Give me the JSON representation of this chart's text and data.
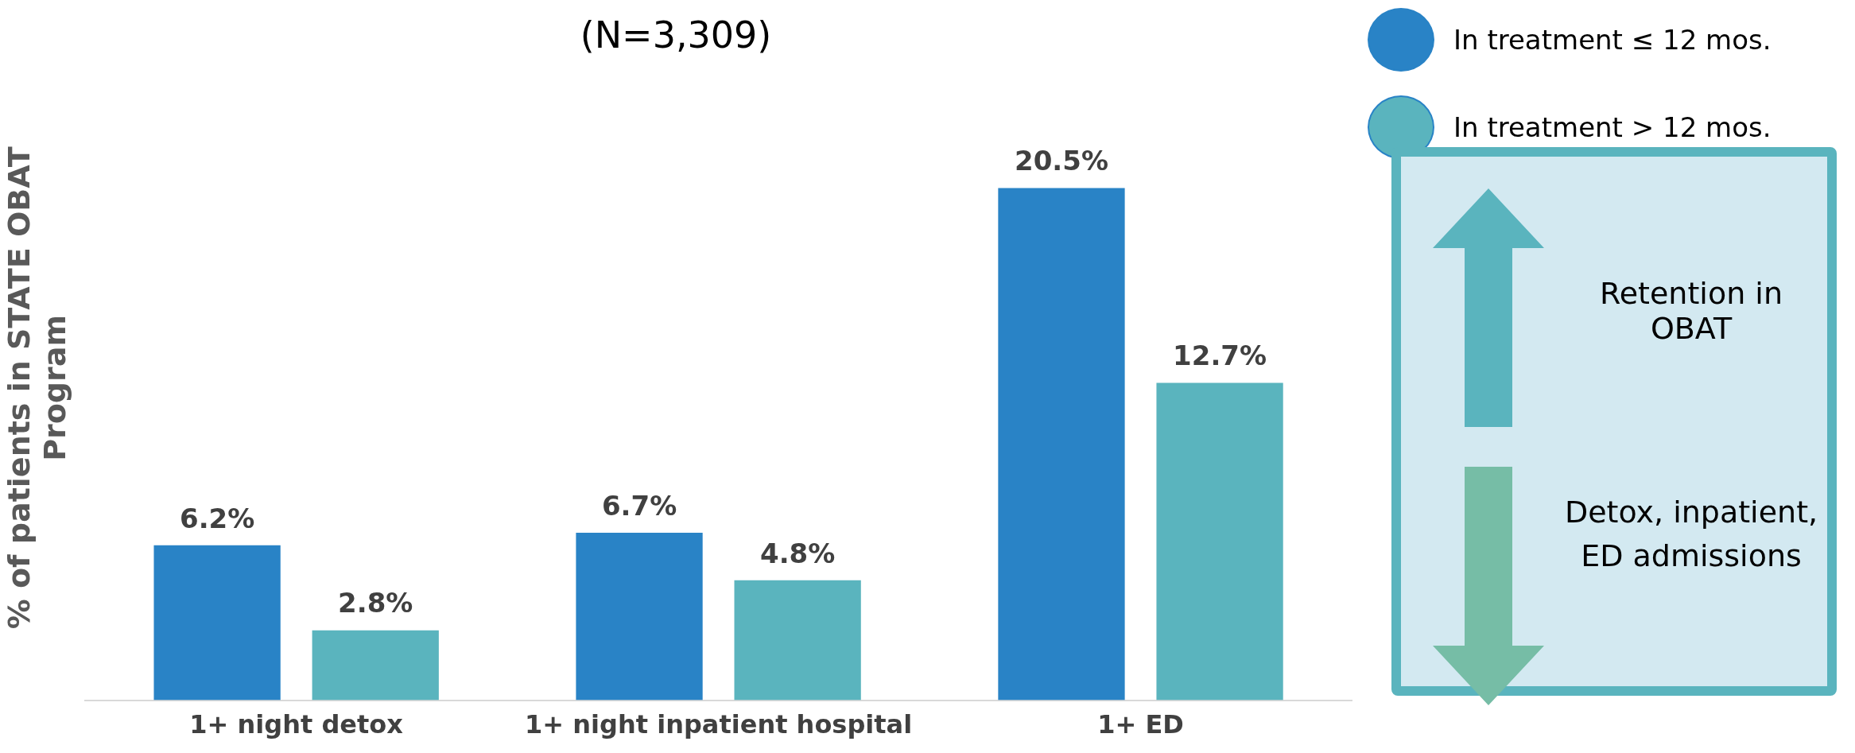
{
  "chart_data": {
    "type": "bar",
    "title": "(N=3,309)",
    "ylabel": "% of patients in STATE OBAT Program",
    "categories": [
      "1+ night detox",
      "1+ night inpatient hospital",
      "1+ ED"
    ],
    "series": [
      {
        "name": "In treatment ≤ 12 mos.",
        "color": "#2983c6",
        "values": [
          6.2,
          6.7,
          20.5
        ],
        "value_labels": [
          "6.2%",
          "6.7%",
          "20.5%"
        ]
      },
      {
        "name": "In treatment > 12 mos.",
        "color": "#5ab4be",
        "values": [
          2.8,
          4.8,
          12.7
        ],
        "value_labels": [
          "2.8%",
          "4.8%",
          "12.7%"
        ]
      }
    ],
    "legend": "top right",
    "grid": false,
    "annotations": [
      "Retention in OBAT",
      "Detox, inpatient, ED admissions"
    ]
  }
}
